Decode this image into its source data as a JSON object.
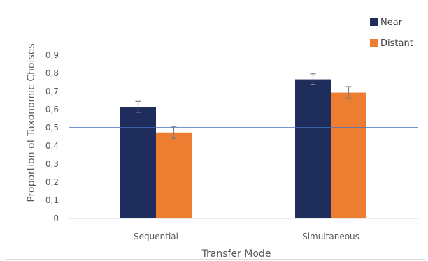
{
  "chart_data": {
    "type": "bar",
    "title": "",
    "xlabel": "Transfer Mode",
    "ylabel": "Proportion of Taxonomic Choises",
    "categories": [
      "Sequential",
      "Simultaneous"
    ],
    "ylim": [
      0,
      0.9
    ],
    "y_ticks": [
      "0",
      "0,1",
      "0,2",
      "0,3",
      "0,4",
      "0,5",
      "0,6",
      "0,7",
      "0,8",
      "0,9"
    ],
    "series": [
      {
        "name": "Near",
        "color": "#1f2d5c",
        "values": [
          0.615,
          0.767
        ],
        "errors": [
          0.03,
          0.03
        ]
      },
      {
        "name": "Distant",
        "color": "#ed7d31",
        "values": [
          0.474,
          0.694
        ],
        "errors": [
          0.033,
          0.033
        ]
      }
    ],
    "reference_line": {
      "y": 0.5,
      "color": "#4472c4"
    },
    "grid": false,
    "legend_position": "top-right"
  }
}
